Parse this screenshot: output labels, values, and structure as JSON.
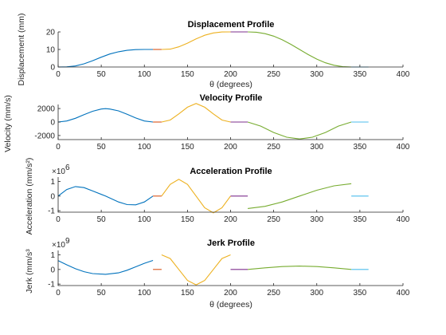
{
  "chart_data": [
    {
      "type": "line",
      "title": "Displacement Profile",
      "xlabel": "θ (degrees)",
      "ylabel": "Displacement (mm)",
      "xlim": [
        0,
        400
      ],
      "ylim": [
        0,
        20
      ],
      "xticks": [
        "0",
        "50",
        "100",
        "150",
        "200",
        "250",
        "300",
        "350",
        "400"
      ],
      "yticks": [
        "0",
        "10",
        "20"
      ],
      "exponent": "",
      "series": [
        {
          "color": "#0072BD",
          "x": [
            0,
            10,
            20,
            30,
            40,
            50,
            55,
            60,
            70,
            80,
            90,
            100,
            110
          ],
          "y": [
            0,
            0.08,
            0.6,
            1.8,
            3.6,
            5.6,
            6.5,
            7.4,
            8.7,
            9.5,
            9.9,
            10,
            10
          ]
        },
        {
          "color": "#D95319",
          "x": [
            110,
            120
          ],
          "y": [
            10,
            10
          ]
        },
        {
          "color": "#EDB120",
          "x": [
            120,
            130,
            140,
            150,
            160,
            170,
            180,
            190,
            200
          ],
          "y": [
            10,
            10.2,
            11.5,
            13.6,
            16,
            18.1,
            19.4,
            19.95,
            20
          ]
        },
        {
          "color": "#7E2F8E",
          "x": [
            200,
            220
          ],
          "y": [
            20,
            20
          ]
        },
        {
          "color": "#77AC30",
          "x": [
            220,
            230,
            240,
            250,
            260,
            270,
            280,
            290,
            300,
            310,
            320,
            330,
            340
          ],
          "y": [
            20,
            19.8,
            19,
            17.6,
            15.5,
            12.9,
            10,
            7.1,
            4.5,
            2.4,
            1,
            0.2,
            0
          ]
        },
        {
          "color": "#4DBEEE",
          "x": [
            340,
            360
          ],
          "y": [
            0,
            0
          ]
        }
      ]
    },
    {
      "type": "line",
      "title": "Velocity Profile",
      "xlabel": "",
      "ylabel": "Velocity (mm/s)",
      "xlim": [
        0,
        400
      ],
      "ylim": [
        -2600,
        2600
      ],
      "xticks": [
        "0",
        "50",
        "100",
        "150",
        "200",
        "250",
        "300",
        "350",
        "400"
      ],
      "yticks": [
        "-2000",
        "0",
        "2000"
      ],
      "ytick_values": [
        -2000,
        0,
        2000
      ],
      "exponent": "",
      "series": [
        {
          "color": "#0072BD",
          "x": [
            0,
            10,
            20,
            30,
            40,
            50,
            55,
            60,
            70,
            80,
            90,
            100,
            110
          ],
          "y": [
            0,
            150,
            550,
            1100,
            1600,
            1930,
            1980,
            1930,
            1650,
            1150,
            600,
            150,
            0
          ]
        },
        {
          "color": "#D95319",
          "x": [
            110,
            120
          ],
          "y": [
            0,
            0
          ]
        },
        {
          "color": "#EDB120",
          "x": [
            120,
            130,
            140,
            150,
            160,
            170,
            180,
            190,
            200
          ],
          "y": [
            0,
            300,
            1200,
            2200,
            2750,
            2200,
            1200,
            300,
            0
          ]
        },
        {
          "color": "#7E2F8E",
          "x": [
            200,
            220
          ],
          "y": [
            0,
            0
          ]
        },
        {
          "color": "#77AC30",
          "x": [
            220,
            235,
            250,
            265,
            280,
            295,
            310,
            325,
            340
          ],
          "y": [
            0,
            -600,
            -1550,
            -2250,
            -2500,
            -2250,
            -1550,
            -600,
            0
          ]
        },
        {
          "color": "#4DBEEE",
          "x": [
            340,
            360
          ],
          "y": [
            0,
            0
          ]
        }
      ]
    },
    {
      "type": "line",
      "title": "Acceleration Profile",
      "xlabel": "",
      "ylabel": "Acceleration (mm/s²)",
      "xlim": [
        0,
        400
      ],
      "ylim": [
        -1.1,
        1.3
      ],
      "xticks": [
        "0",
        "50",
        "100",
        "150",
        "200",
        "250",
        "300",
        "350",
        "400"
      ],
      "yticks": [
        "-1",
        "0",
        "1"
      ],
      "ytick_values": [
        -1,
        0,
        1
      ],
      "exponent": "6",
      "series": [
        {
          "color": "#0072BD",
          "x": [
            0,
            10,
            20,
            30,
            40,
            55,
            70,
            80,
            90,
            100,
            110
          ],
          "y": [
            0,
            0.45,
            0.65,
            0.58,
            0.35,
            0,
            -0.4,
            -0.58,
            -0.6,
            -0.4,
            0
          ]
        },
        {
          "color": "#D95319",
          "x": [
            110,
            120
          ],
          "y": [
            0,
            0
          ]
        },
        {
          "color": "#EDB120",
          "x": [
            120,
            130,
            140,
            150,
            160,
            170,
            180,
            190,
            200
          ],
          "y": [
            0,
            0.8,
            1.15,
            0.8,
            0,
            -0.8,
            -1.15,
            -0.8,
            0
          ]
        },
        {
          "color": "#7E2F8E",
          "x": [
            200,
            220
          ],
          "y": [
            0,
            0
          ]
        },
        {
          "color": "#77AC30",
          "x": [
            220,
            240,
            260,
            280,
            300,
            320,
            340
          ],
          "y": [
            -0.85,
            -0.7,
            -0.4,
            0,
            0.4,
            0.7,
            0.85
          ]
        },
        {
          "color": "#4DBEEE",
          "x": [
            340,
            360
          ],
          "y": [
            0,
            0
          ]
        }
      ]
    },
    {
      "type": "line",
      "title": "Jerk Profile",
      "xlabel": "θ (degrees)",
      "ylabel": "Jerk (mm/s³",
      "xlim": [
        0,
        400
      ],
      "ylim": [
        -1.1,
        1.3
      ],
      "xticks": [
        "0",
        "50",
        "100",
        "150",
        "200",
        "250",
        "300",
        "350",
        "400"
      ],
      "yticks": [
        "-1",
        "0",
        "1"
      ],
      "ytick_values": [
        -1,
        0,
        1
      ],
      "exponent": "9",
      "series": [
        {
          "color": "#0072BD",
          "x": [
            0,
            10,
            20,
            30,
            40,
            55,
            70,
            80,
            90,
            100,
            110
          ],
          "y": [
            0.6,
            0.32,
            0.05,
            -0.15,
            -0.28,
            -0.33,
            -0.23,
            -0.05,
            0.18,
            0.42,
            0.62
          ]
        },
        {
          "color": "#D95319",
          "x": [
            110,
            120
          ],
          "y": [
            0,
            0
          ]
        },
        {
          "color": "#EDB120",
          "x": [
            120,
            130,
            140,
            150,
            160,
            170,
            180,
            190,
            200
          ],
          "y": [
            1.0,
            0.75,
            0,
            -0.75,
            -1.05,
            -0.75,
            0,
            0.75,
            1.0
          ]
        },
        {
          "color": "#7E2F8E",
          "x": [
            200,
            220
          ],
          "y": [
            0,
            0
          ]
        },
        {
          "color": "#77AC30",
          "x": [
            220,
            240,
            260,
            280,
            300,
            320,
            340
          ],
          "y": [
            0,
            0.11,
            0.2,
            0.23,
            0.2,
            0.11,
            0
          ]
        },
        {
          "color": "#4DBEEE",
          "x": [
            340,
            360
          ],
          "y": [
            0,
            0
          ]
        }
      ]
    }
  ]
}
